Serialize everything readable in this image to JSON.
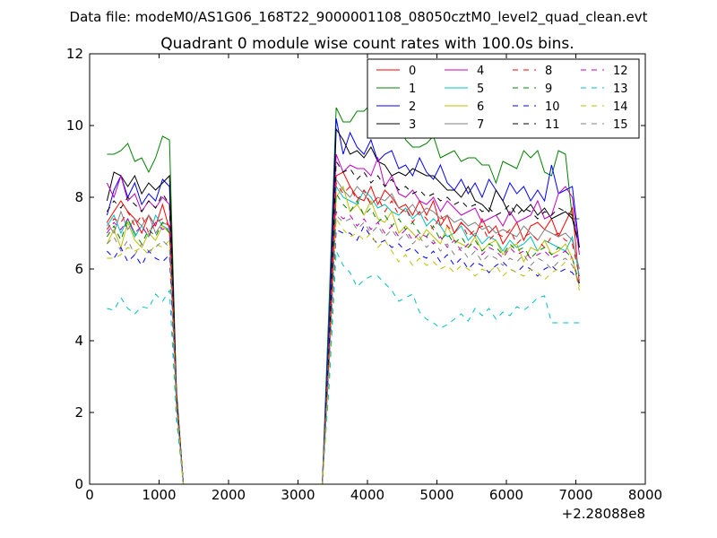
{
  "chart_data": {
    "type": "line",
    "suptitle": "Data file: modeM0/AS1G06_168T22_9000001108_08050cztM0_level2_quad_clean.evt",
    "title": "Quadrant 0 module wise count rates with 100.0s bins.",
    "xlabel": "",
    "ylabel": "",
    "offset_text": "+2.28088e8",
    "xlim": [
      0,
      8000
    ],
    "ylim": [
      0,
      12
    ],
    "xticks": [
      0,
      1000,
      2000,
      3000,
      4000,
      5000,
      6000,
      7000,
      8000
    ],
    "yticks": [
      0,
      2,
      4,
      6,
      8,
      10,
      12
    ],
    "legend_position": "top-right",
    "legend_columns": 4,
    "x": [
      250,
      350,
      450,
      550,
      650,
      750,
      850,
      950,
      1050,
      1150,
      1250,
      1350,
      1450,
      1550,
      1650,
      1750,
      1850,
      1950,
      2050,
      2150,
      2250,
      2350,
      2450,
      2550,
      2650,
      2750,
      2850,
      2950,
      3050,
      3150,
      3250,
      3350,
      3450,
      3550,
      3650,
      3750,
      3850,
      3950,
      4050,
      4150,
      4250,
      4350,
      4450,
      4550,
      4650,
      4750,
      4850,
      4950,
      5050,
      5150,
      5250,
      5350,
      5450,
      5550,
      5650,
      5750,
      5850,
      5950,
      6050,
      6150,
      6250,
      6350,
      6450,
      6550,
      6650,
      6750,
      6850,
      6950,
      7050
    ],
    "series": [
      {
        "name": "0",
        "color": "#ff0000",
        "dash": "solid",
        "values": [
          7.3,
          7.6,
          7.9,
          7.6,
          7.4,
          7.0,
          7.5,
          7.2,
          7.8,
          7.1,
          2.5,
          0,
          0,
          0,
          0,
          0,
          0,
          0,
          0,
          0,
          0,
          0,
          0,
          0,
          0,
          0,
          0,
          0,
          0,
          0,
          0,
          0,
          3.7,
          8.6,
          8.7,
          8.3,
          8.0,
          7.9,
          8.3,
          7.8,
          8.2,
          8.0,
          7.7,
          7.8,
          7.5,
          7.9,
          7.5,
          7.9,
          7.2,
          7.5,
          7.0,
          7.3,
          7.1,
          6.9,
          7.4,
          7.0,
          7.2,
          6.7,
          7.0,
          7.3,
          6.8,
          7.2,
          7.3,
          7.1,
          7.4,
          6.9,
          7.3,
          7.7,
          5.6
        ]
      },
      {
        "name": "1",
        "color": "#008000",
        "dash": "solid",
        "values": [
          9.2,
          9.2,
          9.3,
          9.5,
          9.0,
          9.1,
          8.7,
          9.1,
          9.7,
          9.6,
          2.5,
          0,
          0,
          0,
          0,
          0,
          0,
          0,
          0,
          0,
          0,
          0,
          0,
          0,
          0,
          0,
          0,
          0,
          0,
          0,
          0,
          0,
          5.2,
          10.5,
          10.1,
          10.1,
          10.4,
          10.4,
          10.6,
          10.8,
          10.0,
          9.9,
          10.1,
          9.6,
          9.4,
          9.4,
          9.5,
          9.7,
          9.1,
          9.2,
          9.3,
          9.0,
          9.1,
          9.1,
          8.9,
          8.9,
          8.4,
          9.0,
          8.9,
          8.8,
          9.3,
          9.1,
          9.3,
          8.7,
          8.6,
          9.3,
          9.2,
          7.4,
          7.4
        ]
      },
      {
        "name": "2",
        "color": "#0000ff",
        "dash": "solid",
        "values": [
          7.5,
          8.2,
          8.6,
          8.0,
          8.4,
          7.8,
          8.1,
          7.9,
          8.5,
          8.3,
          2.4,
          0,
          0,
          0,
          0,
          0,
          0,
          0,
          0,
          0,
          0,
          0,
          0,
          0,
          0,
          0,
          0,
          0,
          0,
          0,
          0,
          0,
          4.6,
          10.2,
          9.2,
          9.8,
          9.4,
          9.2,
          9.6,
          9.0,
          9.2,
          9.3,
          8.8,
          8.9,
          8.6,
          9.1,
          8.7,
          8.5,
          8.9,
          8.4,
          8.2,
          8.5,
          8.1,
          8.4,
          8.0,
          8.5,
          8.2,
          7.9,
          8.4,
          8.1,
          8.3,
          7.9,
          8.2,
          7.9,
          8.9,
          8.1,
          8.2,
          8.3,
          6.6
        ]
      },
      {
        "name": "3",
        "color": "#000000",
        "dash": "solid",
        "values": [
          7.9,
          8.7,
          8.6,
          8.3,
          8.6,
          8.1,
          8.4,
          8.2,
          8.4,
          8.6,
          2.6,
          0,
          0,
          0,
          0,
          0,
          0,
          0,
          0,
          0,
          0,
          0,
          0,
          0,
          0,
          0,
          0,
          0,
          0,
          0,
          0,
          0,
          4.0,
          9.9,
          9.6,
          9.2,
          9.3,
          9.1,
          9.4,
          9.0,
          8.9,
          8.6,
          8.7,
          8.6,
          8.8,
          8.7,
          8.6,
          8.6,
          8.4,
          8.2,
          8.2,
          8.0,
          8.3,
          7.9,
          7.8,
          7.6,
          8.2,
          7.9,
          7.5,
          7.8,
          7.6,
          7.8,
          7.5,
          7.7,
          7.4,
          7.5,
          7.6,
          7.4,
          6.6
        ]
      },
      {
        "name": "4",
        "color": "#bf00bf",
        "dash": "solid",
        "values": [
          8.4,
          8.0,
          8.6,
          7.9,
          8.1,
          7.6,
          7.9,
          7.7,
          8.0,
          7.8,
          2.4,
          0,
          0,
          0,
          0,
          0,
          0,
          0,
          0,
          0,
          0,
          0,
          0,
          0,
          0,
          0,
          0,
          0,
          0,
          0,
          0,
          0,
          4.1,
          9.2,
          8.7,
          8.9,
          8.8,
          8.8,
          8.6,
          9.1,
          8.3,
          8.6,
          8.1,
          8.0,
          8.2,
          7.9,
          7.8,
          8.0,
          7.6,
          7.9,
          7.7,
          7.5,
          7.6,
          7.7,
          7.3,
          7.4,
          7.5,
          7.2,
          7.6,
          7.3,
          7.4,
          7.5,
          7.9,
          7.4,
          7.5,
          8.1,
          8.3,
          8.0,
          6.4
        ]
      },
      {
        "name": "5",
        "color": "#00bfbf",
        "dash": "solid",
        "values": [
          7.2,
          7.5,
          7.0,
          7.4,
          6.9,
          7.2,
          6.9,
          7.5,
          7.2,
          7.1,
          2.3,
          0,
          0,
          0,
          0,
          0,
          0,
          0,
          0,
          0,
          0,
          0,
          0,
          0,
          0,
          0,
          0,
          0,
          0,
          0,
          0,
          0,
          3.9,
          8.3,
          8.0,
          7.9,
          7.8,
          8.2,
          8.0,
          7.7,
          7.8,
          7.6,
          7.5,
          7.7,
          7.4,
          7.6,
          7.2,
          7.4,
          7.2,
          6.9,
          7.0,
          7.2,
          6.8,
          7.0,
          6.7,
          6.9,
          6.8,
          6.5,
          6.8,
          6.6,
          6.7,
          6.9,
          6.5,
          6.8,
          6.7,
          6.6,
          6.5,
          6.9,
          5.8
        ]
      },
      {
        "name": "6",
        "color": "#bfbf00",
        "dash": "solid",
        "values": [
          6.7,
          7.1,
          6.6,
          7.3,
          6.8,
          6.6,
          7.0,
          6.8,
          7.2,
          7.0,
          2.2,
          0,
          0,
          0,
          0,
          0,
          0,
          0,
          0,
          0,
          0,
          0,
          0,
          0,
          0,
          0,
          0,
          0,
          0,
          0,
          0,
          0,
          3.6,
          8.0,
          8.3,
          7.6,
          7.8,
          7.5,
          7.9,
          7.4,
          7.3,
          7.6,
          7.0,
          7.2,
          7.0,
          6.8,
          7.1,
          6.9,
          6.7,
          7.2,
          6.8,
          6.7,
          6.6,
          6.9,
          6.5,
          6.7,
          6.8,
          6.4,
          6.6,
          6.7,
          6.2,
          6.6,
          6.5,
          6.8,
          6.4,
          6.5,
          6.7,
          6.3,
          5.5
        ]
      },
      {
        "name": "7",
        "color": "#808080",
        "dash": "solid",
        "values": [
          7.3,
          7.0,
          7.6,
          7.1,
          7.4,
          7.2,
          7.5,
          7.0,
          7.3,
          7.2,
          2.4,
          0,
          0,
          0,
          0,
          0,
          0,
          0,
          0,
          0,
          0,
          0,
          0,
          0,
          0,
          0,
          0,
          0,
          0,
          0,
          0,
          0,
          3.8,
          8.5,
          8.2,
          8.0,
          8.3,
          8.1,
          7.8,
          8.0,
          7.9,
          8.1,
          7.7,
          7.6,
          7.8,
          7.5,
          7.7,
          7.6,
          7.4,
          7.5,
          7.3,
          7.4,
          7.2,
          7.3,
          7.1,
          7.2,
          7.0,
          7.1,
          7.0,
          6.9,
          7.2,
          7.0,
          6.8,
          7.1,
          7.0,
          6.9,
          7.0,
          6.8,
          6.0
        ]
      },
      {
        "name": "8",
        "color": "#ff0000",
        "dash": "dashed",
        "values": [
          7.1,
          7.4,
          7.3,
          7.6,
          7.2,
          7.5,
          7.0,
          7.3,
          7.4,
          7.2,
          2.3,
          0,
          0,
          0,
          0,
          0,
          0,
          0,
          0,
          0,
          0,
          0,
          0,
          0,
          0,
          0,
          0,
          0,
          0,
          0,
          0,
          0,
          3.7,
          8.4,
          8.1,
          8.3,
          7.9,
          8.2,
          7.8,
          8.0,
          7.6,
          7.9,
          7.5,
          7.7,
          7.3,
          7.6,
          7.4,
          7.1,
          7.5,
          7.2,
          7.0,
          7.3,
          6.9,
          7.1,
          7.2,
          6.8,
          7.0,
          6.9,
          7.1,
          6.7,
          6.9,
          7.0,
          6.8,
          6.6,
          6.9,
          7.0,
          6.8,
          6.7,
          5.8
        ]
      },
      {
        "name": "9",
        "color": "#008000",
        "dash": "dashed",
        "values": [
          6.9,
          7.2,
          6.8,
          7.4,
          7.0,
          6.7,
          7.1,
          6.9,
          7.3,
          7.0,
          2.3,
          0,
          0,
          0,
          0,
          0,
          0,
          0,
          0,
          0,
          0,
          0,
          0,
          0,
          0,
          0,
          0,
          0,
          0,
          0,
          0,
          0,
          3.6,
          8.1,
          7.8,
          7.6,
          7.9,
          7.5,
          7.7,
          7.3,
          7.5,
          7.2,
          7.4,
          7.1,
          7.3,
          7.0,
          6.9,
          7.2,
          6.8,
          7.0,
          6.7,
          6.9,
          6.6,
          6.8,
          6.5,
          6.7,
          6.6,
          6.4,
          6.7,
          6.5,
          6.6,
          6.3,
          6.5,
          6.6,
          6.4,
          6.6,
          6.5,
          6.3,
          5.6
        ]
      },
      {
        "name": "10",
        "color": "#0000ff",
        "dash": "dashed",
        "values": [
          6.5,
          6.3,
          6.6,
          6.2,
          6.4,
          6.1,
          6.5,
          6.3,
          6.2,
          6.4,
          2.1,
          0,
          0,
          0,
          0,
          0,
          0,
          0,
          0,
          0,
          0,
          0,
          0,
          0,
          0,
          0,
          0,
          0,
          0,
          0,
          0,
          0,
          3.3,
          7.1,
          7.0,
          7.0,
          6.8,
          7.2,
          6.9,
          6.7,
          6.8,
          6.6,
          6.7,
          6.5,
          6.6,
          6.4,
          6.3,
          6.5,
          6.2,
          6.4,
          6.1,
          6.3,
          6.0,
          6.2,
          6.1,
          5.9,
          6.1,
          6.2,
          6.0,
          5.9,
          6.1,
          6.0,
          5.8,
          6.0,
          6.1,
          5.9,
          6.0,
          5.9,
          5.6
        ]
      },
      {
        "name": "11",
        "color": "#000000",
        "dash": "dashed",
        "values": [
          7.6,
          7.9,
          7.7,
          8.0,
          7.8,
          7.6,
          7.9,
          7.7,
          8.1,
          7.8,
          2.5,
          0,
          0,
          0,
          0,
          0,
          0,
          0,
          0,
          0,
          0,
          0,
          0,
          0,
          0,
          0,
          0,
          0,
          0,
          0,
          0,
          0,
          3.9,
          9.0,
          8.7,
          8.8,
          8.5,
          8.7,
          8.4,
          8.6,
          8.3,
          8.5,
          8.2,
          8.3,
          8.1,
          8.2,
          8.0,
          8.1,
          7.9,
          8.0,
          7.8,
          7.9,
          7.7,
          7.8,
          7.6,
          7.7,
          7.5,
          7.6,
          7.8,
          7.5,
          7.7,
          7.6,
          7.4,
          7.6,
          7.5,
          7.7,
          7.6,
          7.5,
          6.6
        ]
      },
      {
        "name": "12",
        "color": "#bf00bf",
        "dash": "dashed",
        "values": [
          7.0,
          7.3,
          7.1,
          7.4,
          7.0,
          7.2,
          6.9,
          7.3,
          7.1,
          7.2,
          2.3,
          0,
          0,
          0,
          0,
          0,
          0,
          0,
          0,
          0,
          0,
          0,
          0,
          0,
          0,
          0,
          0,
          0,
          0,
          0,
          0,
          0,
          3.5,
          7.6,
          7.4,
          7.5,
          7.2,
          7.4,
          7.1,
          7.3,
          7.0,
          7.2,
          6.9,
          7.1,
          6.8,
          7.0,
          6.9,
          6.7,
          6.9,
          6.6,
          6.8,
          6.5,
          6.7,
          6.6,
          6.4,
          6.6,
          6.5,
          6.3,
          6.6,
          6.4,
          6.5,
          6.3,
          6.4,
          6.5,
          6.3,
          6.4,
          6.5,
          6.3,
          5.5
        ]
      },
      {
        "name": "13",
        "color": "#00bfbf",
        "dash": "dashed",
        "values": [
          4.9,
          4.85,
          5.2,
          4.9,
          4.75,
          4.95,
          4.9,
          5.3,
          5.1,
          5.4,
          1.8,
          0,
          0,
          0,
          0,
          0,
          0,
          0,
          0,
          0,
          0,
          0,
          0,
          0,
          0,
          0,
          0,
          0,
          0,
          0,
          0,
          0,
          2.8,
          6.5,
          6.1,
          5.9,
          5.5,
          5.7,
          5.8,
          5.8,
          5.6,
          5.4,
          5.1,
          5.2,
          5.3,
          4.8,
          4.6,
          4.5,
          4.35,
          4.45,
          4.6,
          4.75,
          4.55,
          4.9,
          4.7,
          4.9,
          4.6,
          4.8,
          4.7,
          4.95,
          4.85,
          5.0,
          5.2,
          5.25,
          4.5,
          4.5,
          4.5,
          4.5,
          4.5
        ]
      },
      {
        "name": "14",
        "color": "#bfbf00",
        "dash": "dashed",
        "values": [
          6.3,
          6.3,
          6.4,
          6.6,
          6.5,
          6.6,
          6.4,
          6.7,
          6.6,
          6.8,
          2.2,
          0,
          0,
          0,
          0,
          0,
          0,
          0,
          0,
          0,
          0,
          0,
          0,
          0,
          0,
          0,
          0,
          0,
          0,
          0,
          0,
          0,
          3.3,
          7.4,
          7.1,
          6.9,
          7.0,
          6.8,
          7.0,
          6.6,
          6.8,
          6.5,
          6.2,
          6.4,
          6.1,
          6.3,
          6.1,
          6.2,
          6.0,
          6.1,
          5.9,
          6.1,
          6.0,
          5.8,
          6.0,
          5.9,
          6.1,
          5.8,
          6.0,
          5.9,
          5.8,
          6.0,
          5.9,
          5.7,
          5.9,
          6.0,
          6.2,
          6.3,
          5.4
        ]
      },
      {
        "name": "15",
        "color": "#808080",
        "dash": "dashed",
        "values": [
          6.7,
          6.9,
          6.5,
          6.8,
          6.4,
          6.7,
          6.5,
          6.6,
          6.8,
          6.6,
          2.2,
          0,
          0,
          0,
          0,
          0,
          0,
          0,
          0,
          0,
          0,
          0,
          0,
          0,
          0,
          0,
          0,
          0,
          0,
          0,
          0,
          0,
          3.4,
          7.5,
          7.3,
          7.4,
          7.1,
          7.3,
          7.0,
          7.2,
          6.9,
          7.1,
          6.8,
          7.0,
          6.7,
          6.9,
          6.6,
          6.8,
          6.5,
          6.7,
          6.4,
          6.6,
          6.3,
          6.5,
          6.2,
          6.4,
          6.3,
          6.1,
          6.3,
          6.2,
          6.4,
          6.1,
          6.3,
          6.2,
          6.0,
          6.2,
          6.3,
          6.1,
          5.6
        ]
      }
    ]
  }
}
